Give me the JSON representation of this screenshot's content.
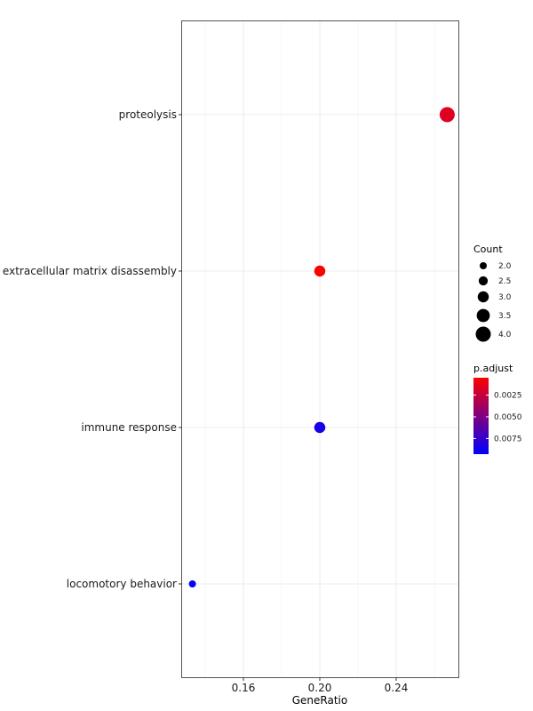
{
  "chart_data": {
    "type": "scatter",
    "title": "",
    "xlabel": "GeneRatio",
    "ylabel": "",
    "xlim": [
      0.1333,
      0.2667
    ],
    "x_ticks": [
      "0.16",
      "0.20",
      "0.24"
    ],
    "x_tick_values": [
      0.16,
      0.2,
      0.24
    ],
    "categories": [
      "proteolysis",
      "extracellular matrix disassembly",
      "immune response",
      "locomotory behavior"
    ],
    "points": [
      {
        "term": "proteolysis",
        "gene_ratio": 0.2667,
        "count": 4,
        "p_adjust": 0.0016
      },
      {
        "term": "extracellular matrix disassembly",
        "gene_ratio": 0.2,
        "count": 3,
        "p_adjust": 0.0005
      },
      {
        "term": "immune response",
        "gene_ratio": 0.2,
        "count": 3,
        "p_adjust": 0.0085
      },
      {
        "term": "locomotory behavior",
        "gene_ratio": 0.1333,
        "count": 2,
        "p_adjust": 0.0092
      }
    ],
    "grid": true,
    "size_legend": {
      "title": "Count",
      "values": [
        2.0,
        2.5,
        3.0,
        3.5,
        4.0
      ],
      "labels": [
        "2.0",
        "2.5",
        "3.0",
        "3.5",
        "4.0"
      ]
    },
    "color_legend": {
      "title": "p.adjust",
      "range": [
        0.0005,
        0.0093
      ],
      "ticks": [
        0.0025,
        0.005,
        0.0075
      ],
      "tick_labels": [
        "0.0025",
        "0.0050",
        "0.0075"
      ],
      "low_color": "#FF0000",
      "high_color": "#0000FF"
    },
    "legend_placement": "right"
  }
}
